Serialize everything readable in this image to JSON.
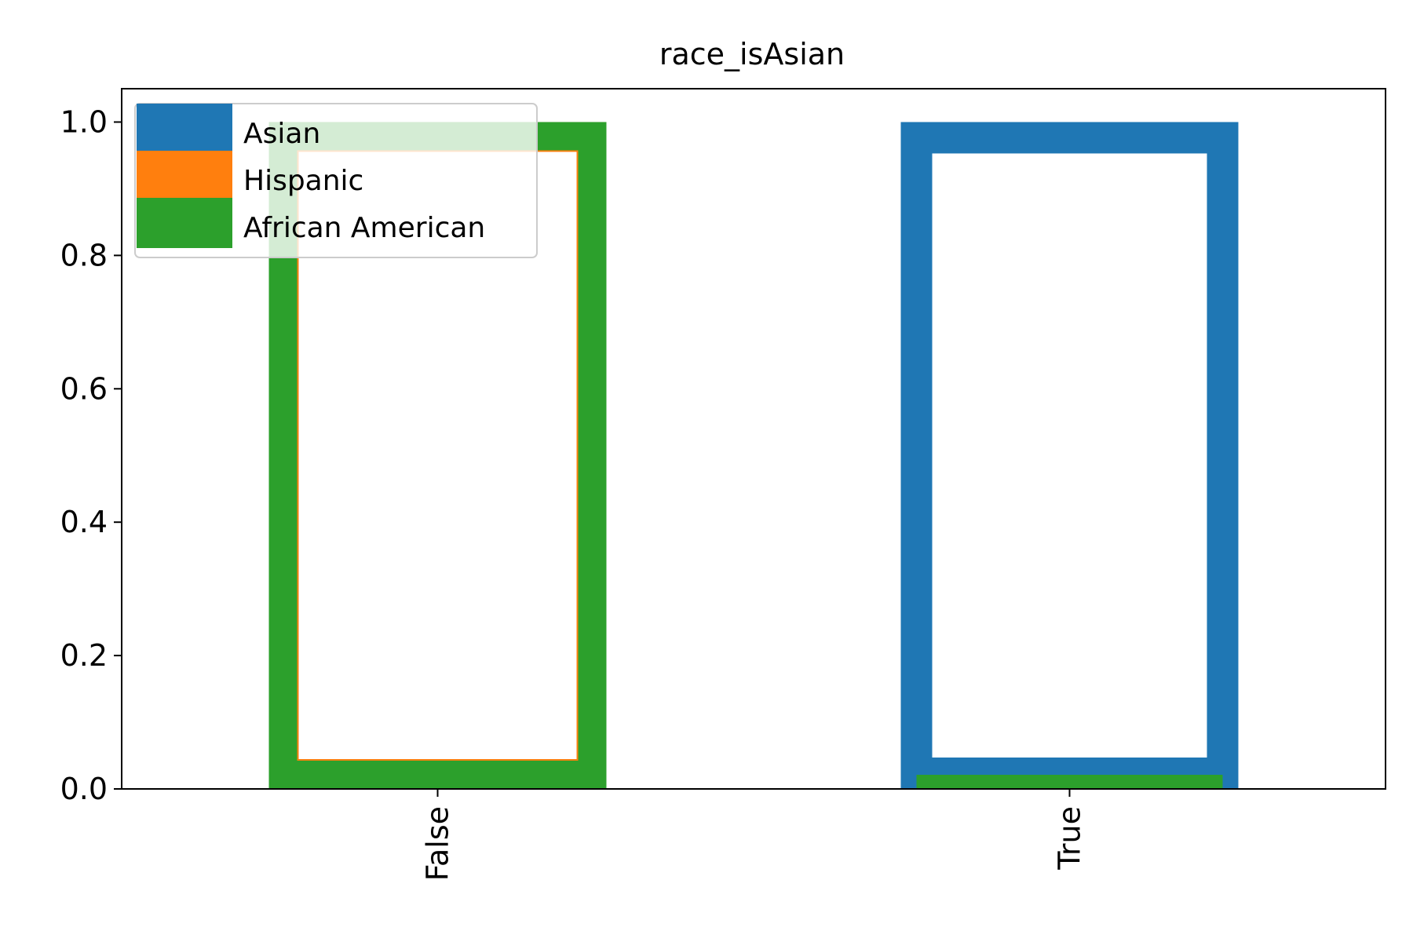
{
  "chart_data": {
    "type": "bar",
    "title": "race_isAsian",
    "xlabel": "",
    "ylabel": "",
    "categories": [
      "False",
      "True"
    ],
    "ylim": [
      0,
      1.05
    ],
    "yticks": [
      0.0,
      0.2,
      0.4,
      0.6,
      0.8,
      1.0
    ],
    "ytick_labels": [
      "0.0",
      "0.2",
      "0.4",
      "0.6",
      "0.8",
      "1.0"
    ],
    "series": [
      {
        "name": "Asian",
        "color": "#1f77b4",
        "values": [
          0.0,
          1.0
        ],
        "style": "outlined-bar"
      },
      {
        "name": "Hispanic",
        "color": "#ff7f0e",
        "values": [
          1.0,
          0.0
        ],
        "style": "outlined-bar"
      },
      {
        "name": "African American",
        "color": "#2ca02c",
        "values": [
          1.0,
          0.0
        ],
        "style": "outlined-bar"
      }
    ],
    "legend_position": "upper left",
    "grid": false
  }
}
